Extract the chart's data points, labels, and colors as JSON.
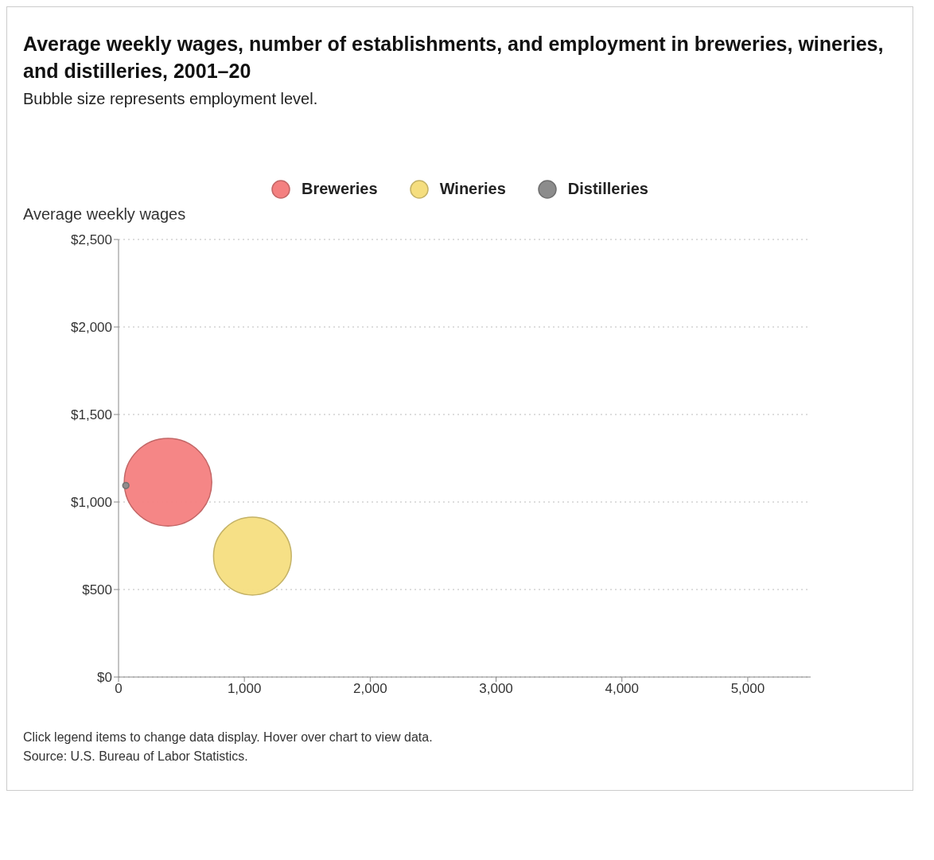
{
  "chart_data": {
    "type": "bubble",
    "title": "Average weekly wages, number of establishments, and employment in breweries, wineries, and distilleries, 2001–20",
    "subtitle": "Bubble size represents employment level.",
    "ylabel": "Average weekly wages",
    "annotations": [
      "Click legend items to change data display. Hover over chart to view data.",
      "Source: U.S. Bureau of Labor Statistics."
    ],
    "series": [
      {
        "name": "Breweries",
        "color": "#f48080",
        "x": [
          393
        ],
        "values": [
          1113
        ],
        "sizes": [
          1
        ]
      },
      {
        "name": "Wineries",
        "color": "#f5de7f",
        "x": [
          1064
        ],
        "values": [
          691
        ],
        "sizes": [
          0.79
        ]
      },
      {
        "name": "Distilleries",
        "color": "#8c8c8c",
        "x": [
          58
        ],
        "values": [
          1094
        ],
        "sizes": [
          0.005
        ]
      }
    ],
    "xlim": [
      0,
      5500
    ],
    "xticks": [
      0,
      {
        "value": 1000,
        "label": "1,000"
      },
      {
        "value": 2000,
        "label": "2,000"
      },
      {
        "value": 3000,
        "label": "3,000"
      },
      {
        "value": 4000,
        "label": "4,000"
      },
      {
        "value": 5000,
        "label": "5,000"
      }
    ],
    "ylim": [
      0,
      2500
    ],
    "yticks": [
      {
        "value": 0,
        "label": "$0"
      },
      {
        "value": 500,
        "label": "$500"
      },
      {
        "value": 1000,
        "label": "$1,000"
      },
      {
        "value": 1500,
        "label": "$1,500"
      },
      {
        "value": 2000,
        "label": "$2,000"
      },
      {
        "value": 2500,
        "label": "$2,500"
      }
    ],
    "grid": "y",
    "legend": "top"
  }
}
